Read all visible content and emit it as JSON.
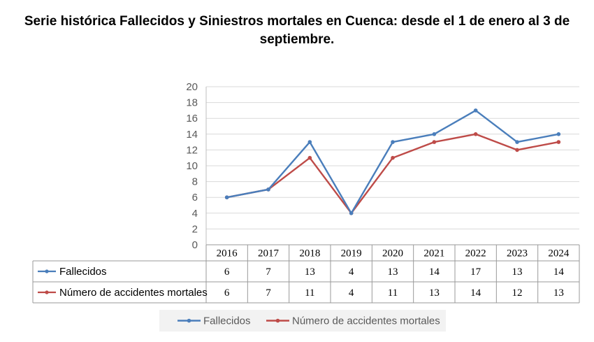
{
  "chart_data": {
    "type": "line",
    "title": "Serie histórica Fallecidos y Siniestros mortales en Cuenca: desde el 1 de enero al 3 de septiembre.",
    "categories": [
      "2016",
      "2017",
      "2018",
      "2019",
      "2020",
      "2021",
      "2022",
      "2023",
      "2024"
    ],
    "series": [
      {
        "name": "Fallecidos",
        "color": "#4A7EBB",
        "values": [
          6,
          7,
          13,
          4,
          13,
          14,
          17,
          13,
          14
        ]
      },
      {
        "name": "Número de accidentes mortales",
        "color": "#BE4B48",
        "values": [
          6,
          7,
          11,
          4,
          11,
          13,
          14,
          12,
          13
        ]
      }
    ],
    "ylim": [
      0,
      20
    ],
    "yticks": [
      0,
      2,
      4,
      6,
      8,
      10,
      12,
      14,
      16,
      18,
      20
    ],
    "grid": true,
    "data_table": true,
    "legend_position": "bottom"
  }
}
